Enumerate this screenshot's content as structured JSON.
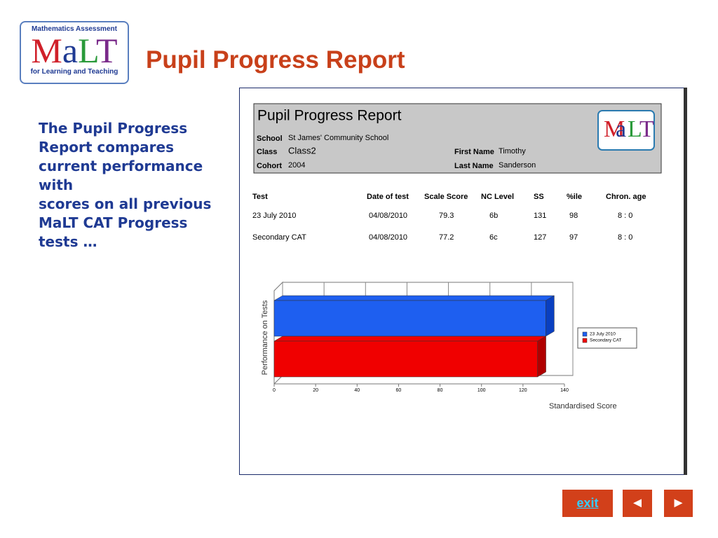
{
  "logo": {
    "top": "Mathematics Assessment",
    "letters": [
      "M",
      "a",
      "L",
      "T"
    ],
    "bottom": "for Learning and Teaching"
  },
  "title": "Pupil Progress Report",
  "description": [
    "The Pupil Progress Report compares current performance with",
    "scores on all previous MaLT CAT Progress tests …"
  ],
  "report": {
    "heading": "Pupil Progress Report",
    "logo_letters": [
      "M",
      "a",
      "L",
      "T"
    ],
    "fields": [
      {
        "label": "School",
        "value": "St James' Community School"
      },
      {
        "label": "Class",
        "value": "Class2"
      },
      {
        "label": "Cohort",
        "value": "2004"
      },
      {
        "label": "First Name",
        "value": "Timothy"
      },
      {
        "label": "Last Name",
        "value": "Sanderson"
      }
    ],
    "table": {
      "columns": [
        "Test",
        "Date of test",
        "Scale Score",
        "NC Level",
        "SS",
        "%ile",
        "Chron. age"
      ],
      "rows": [
        [
          "23 July 2010",
          "04/08/2010",
          "79.3",
          "6b",
          "131",
          "98",
          "8 :  0"
        ],
        [
          "Secondary CAT",
          "04/08/2010",
          "77.2",
          "6c",
          "127",
          "97",
          "8 :  0"
        ]
      ]
    },
    "chart": {
      "type": "bar",
      "orientation": "horizontal",
      "ylabel": "Performance on Tests",
      "xlabel": "Standardised Score",
      "series": [
        {
          "name": "23 July 2010",
          "color": "#1e5ff0",
          "values": [
            131
          ]
        },
        {
          "name": "Secondary CAT",
          "color": "#f00000",
          "values": [
            127
          ]
        }
      ],
      "xlim": [
        0,
        140
      ],
      "xticks": [
        0,
        20,
        40,
        60,
        80,
        100,
        120,
        140
      ],
      "grid": true
    }
  },
  "nav": {
    "exit": "exit",
    "prev": "◄",
    "next": "►"
  }
}
